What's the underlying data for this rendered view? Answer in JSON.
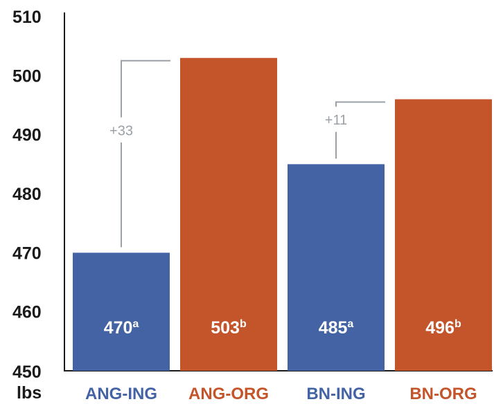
{
  "chart_data": {
    "type": "bar",
    "categories": [
      "ANG-ING",
      "ANG-ORG",
      "BN-ING",
      "BN-ORG"
    ],
    "values": [
      470,
      503,
      485,
      496
    ],
    "value_labels": [
      "470",
      "503",
      "485",
      "496"
    ],
    "superscripts": [
      "a",
      "b",
      "a",
      "b"
    ],
    "colors": [
      "#4463a5",
      "#c4552a",
      "#4463a5",
      "#c4552a"
    ],
    "ylabel": "lbs",
    "ylim": [
      450,
      510
    ],
    "yticks": [
      "450",
      "460",
      "470",
      "480",
      "490",
      "500",
      "510"
    ],
    "grid": false,
    "annotations": [
      {
        "text": "+33",
        "from_index": 0,
        "to_index": 1
      },
      {
        "text": "+11",
        "from_index": 2,
        "to_index": 3
      }
    ]
  }
}
